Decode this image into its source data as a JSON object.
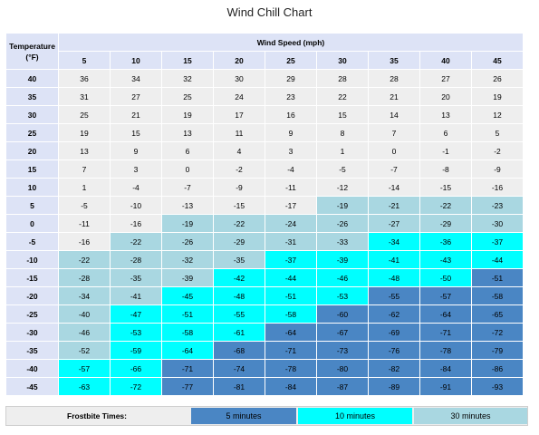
{
  "chart_data": {
    "type": "table",
    "title": "Wind Chill Chart",
    "row_header": "Temperature (°F)",
    "column_header": "Wind Speed (mph)",
    "wind_speeds": [
      "5",
      "10",
      "15",
      "20",
      "25",
      "30",
      "35",
      "40",
      "45"
    ],
    "temperatures": [
      "40",
      "35",
      "30",
      "25",
      "20",
      "15",
      "10",
      "5",
      "0",
      "-5",
      "-10",
      "-15",
      "-20",
      "-25",
      "-30",
      "-35",
      "-40",
      "-45"
    ],
    "values": [
      [
        36,
        34,
        32,
        30,
        29,
        28,
        28,
        27,
        26
      ],
      [
        31,
        27,
        25,
        24,
        23,
        22,
        21,
        20,
        19
      ],
      [
        25,
        21,
        19,
        17,
        16,
        15,
        14,
        13,
        12
      ],
      [
        19,
        15,
        13,
        11,
        9,
        8,
        7,
        6,
        5
      ],
      [
        13,
        9,
        6,
        4,
        3,
        1,
        0,
        -1,
        -2
      ],
      [
        7,
        3,
        0,
        -2,
        -4,
        -5,
        -7,
        -8,
        -9
      ],
      [
        1,
        -4,
        -7,
        -9,
        -11,
        -12,
        -14,
        -15,
        -16
      ],
      [
        -5,
        -10,
        -13,
        -15,
        -17,
        -19,
        -21,
        -22,
        -23
      ],
      [
        -11,
        -16,
        -19,
        -22,
        -24,
        -26,
        -27,
        -29,
        -30
      ],
      [
        -16,
        -22,
        -26,
        -29,
        -31,
        -33,
        -34,
        -36,
        -37
      ],
      [
        -22,
        -28,
        -32,
        -35,
        -37,
        -39,
        -41,
        -43,
        -44
      ],
      [
        -28,
        -35,
        -39,
        -42,
        -44,
        -46,
        -48,
        -50,
        -51
      ],
      [
        -34,
        -41,
        -45,
        -48,
        -51,
        -53,
        -55,
        -57,
        -58
      ],
      [
        -40,
        -47,
        -51,
        -55,
        -58,
        -60,
        -62,
        -64,
        -65
      ],
      [
        -46,
        -53,
        -58,
        -61,
        -64,
        -67,
        -69,
        -71,
        -72
      ],
      [
        -52,
        -59,
        -64,
        -68,
        -71,
        -73,
        -76,
        -78,
        -79
      ],
      [
        -57,
        -66,
        -71,
        -74,
        -78,
        -80,
        -82,
        -84,
        -86
      ],
      [
        -63,
        -72,
        -77,
        -81,
        -84,
        -87,
        -89,
        -91,
        -93
      ]
    ],
    "frostbite_zones": [
      [
        0,
        0,
        0,
        0,
        0,
        0,
        0,
        0,
        0
      ],
      [
        0,
        0,
        0,
        0,
        0,
        0,
        0,
        0,
        0
      ],
      [
        0,
        0,
        0,
        0,
        0,
        0,
        0,
        0,
        0
      ],
      [
        0,
        0,
        0,
        0,
        0,
        0,
        0,
        0,
        0
      ],
      [
        0,
        0,
        0,
        0,
        0,
        0,
        0,
        0,
        0
      ],
      [
        0,
        0,
        0,
        0,
        0,
        0,
        0,
        0,
        0
      ],
      [
        0,
        0,
        0,
        0,
        0,
        0,
        0,
        0,
        0
      ],
      [
        0,
        0,
        0,
        0,
        0,
        30,
        30,
        30,
        30
      ],
      [
        0,
        0,
        30,
        30,
        30,
        30,
        30,
        30,
        30
      ],
      [
        0,
        30,
        30,
        30,
        30,
        30,
        10,
        10,
        10
      ],
      [
        30,
        30,
        30,
        30,
        10,
        10,
        10,
        10,
        10
      ],
      [
        30,
        30,
        30,
        10,
        10,
        10,
        10,
        10,
        5
      ],
      [
        30,
        30,
        10,
        10,
        10,
        10,
        5,
        5,
        5
      ],
      [
        30,
        10,
        10,
        10,
        10,
        5,
        5,
        5,
        5
      ],
      [
        30,
        10,
        10,
        10,
        5,
        5,
        5,
        5,
        5
      ],
      [
        30,
        10,
        10,
        5,
        5,
        5,
        5,
        5,
        5
      ],
      [
        10,
        10,
        5,
        5,
        5,
        5,
        5,
        5,
        5
      ],
      [
        10,
        10,
        5,
        5,
        5,
        5,
        5,
        5,
        5
      ]
    ],
    "legend": {
      "label": "Frostbite Times:",
      "entries": [
        {
          "key": 5,
          "label": "5 minutes",
          "color": "#4a86c4"
        },
        {
          "key": 10,
          "label": "10 minutes",
          "color": "#00ffff"
        },
        {
          "key": 30,
          "label": "30 minutes",
          "color": "#a9d7e1"
        }
      ]
    },
    "colors": {
      "header": "#dde3f6",
      "no_frostbite": "#eeeeee"
    }
  }
}
